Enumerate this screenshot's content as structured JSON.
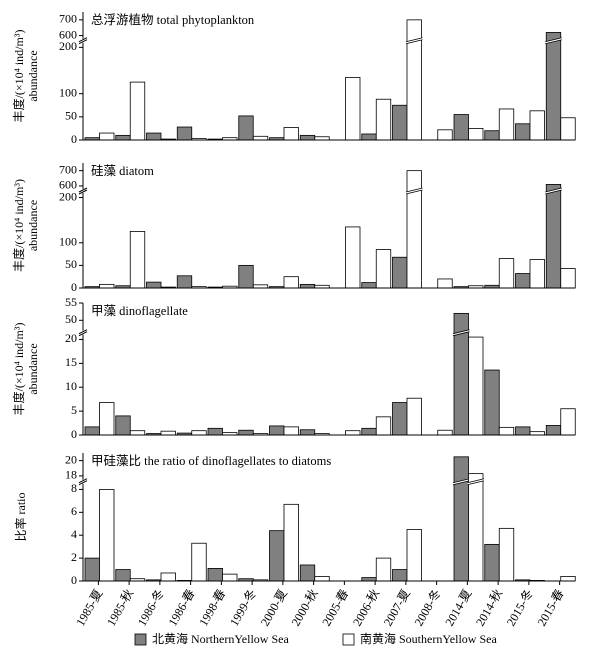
{
  "chart_data": [
    {
      "type": "bar",
      "title": "总浮游植物 total phytoplankton",
      "ylabel": [
        "丰度/(×10⁴ ind/m³)",
        "abundance"
      ],
      "ylim": [
        0,
        750
      ],
      "ybreak": [
        210,
        580
      ],
      "yticks": [
        0,
        50,
        100,
        200,
        600,
        700
      ],
      "series": [
        {
          "color": "#808080",
          "values": [
            5,
            10,
            15,
            28,
            2,
            52,
            5,
            10,
            0,
            13,
            75,
            0,
            55,
            20,
            35,
            620
          ]
        },
        {
          "color": "#ffffff",
          "values": [
            15,
            125,
            2,
            3,
            5,
            8,
            27,
            7,
            135,
            88,
            700,
            22,
            25,
            67,
            63,
            48
          ]
        }
      ]
    },
    {
      "type": "bar",
      "title": "硅藻 diatom",
      "ylabel": [
        "丰度/(×10⁴ ind/m³)",
        "abundance"
      ],
      "ylim": [
        0,
        750
      ],
      "ybreak": [
        210,
        580
      ],
      "yticks": [
        0,
        50,
        100,
        200,
        600,
        700
      ],
      "series": [
        {
          "color": "#808080",
          "values": [
            3,
            5,
            13,
            27,
            2,
            50,
            3,
            8,
            0,
            12,
            68,
            0,
            3,
            6,
            32,
            610
          ]
        },
        {
          "color": "#ffffff",
          "values": [
            8,
            125,
            2,
            3,
            4,
            7,
            25,
            6,
            135,
            85,
            700,
            20,
            5,
            65,
            63,
            43
          ]
        }
      ]
    },
    {
      "type": "bar",
      "title": "甲藻 dinoflagellate",
      "ylabel": [
        "丰度/(×10⁴ ind/m³)",
        "abundance"
      ],
      "ylim": [
        0,
        55
      ],
      "ybreak": [
        21,
        47
      ],
      "yticks": [
        0,
        5,
        10,
        15,
        20,
        50,
        55
      ],
      "series": [
        {
          "color": "#808080",
          "values": [
            1.7,
            4,
            0.3,
            0.4,
            1.4,
            1,
            1.9,
            1.1,
            0,
            1.4,
            6.8,
            0,
            52,
            13.6,
            1.7,
            2
          ]
        },
        {
          "color": "#ffffff",
          "values": [
            6.8,
            0.9,
            0.8,
            0.9,
            0.5,
            0.3,
            1.7,
            0.3,
            0.9,
            3.8,
            7.7,
            1,
            20.5,
            1.6,
            0.7,
            5.5
          ]
        }
      ]
    },
    {
      "type": "bar",
      "title": "甲硅藻比  the ratio of dinoflagellates to diatoms",
      "ylabel": [
        "比率 ratio"
      ],
      "ylim": [
        0,
        21
      ],
      "ybreak": [
        8.5,
        17.5
      ],
      "yticks": [
        0,
        2,
        4,
        6,
        8,
        18,
        20
      ],
      "categories": [
        "1985-夏",
        "1985-秋",
        "1986-冬",
        "1986-春",
        "1998-春",
        "1999-冬",
        "2000-夏",
        "2000-秋",
        "2005-春",
        "2006-秋",
        "2007-夏",
        "2008-冬",
        "2014-夏",
        "2014-秋",
        "2015-冬",
        "2015-春"
      ],
      "series": [
        {
          "name": "北黄海  NorthernYellow Sea",
          "color": "#808080",
          "values": [
            2,
            1,
            0.1,
            0.05,
            1.1,
            0.2,
            4.4,
            1.4,
            0,
            0.3,
            1,
            0,
            20.5,
            3.2,
            0.1,
            0
          ]
        },
        {
          "name": "南黄海  SouthernYellow Sea",
          "color": "#ffffff",
          "values": [
            8,
            0.2,
            0.7,
            3.3,
            0.6,
            0.1,
            6.7,
            0.4,
            0,
            2,
            4.5,
            0,
            18.3,
            4.6,
            0.05,
            0.4
          ]
        }
      ]
    }
  ]
}
